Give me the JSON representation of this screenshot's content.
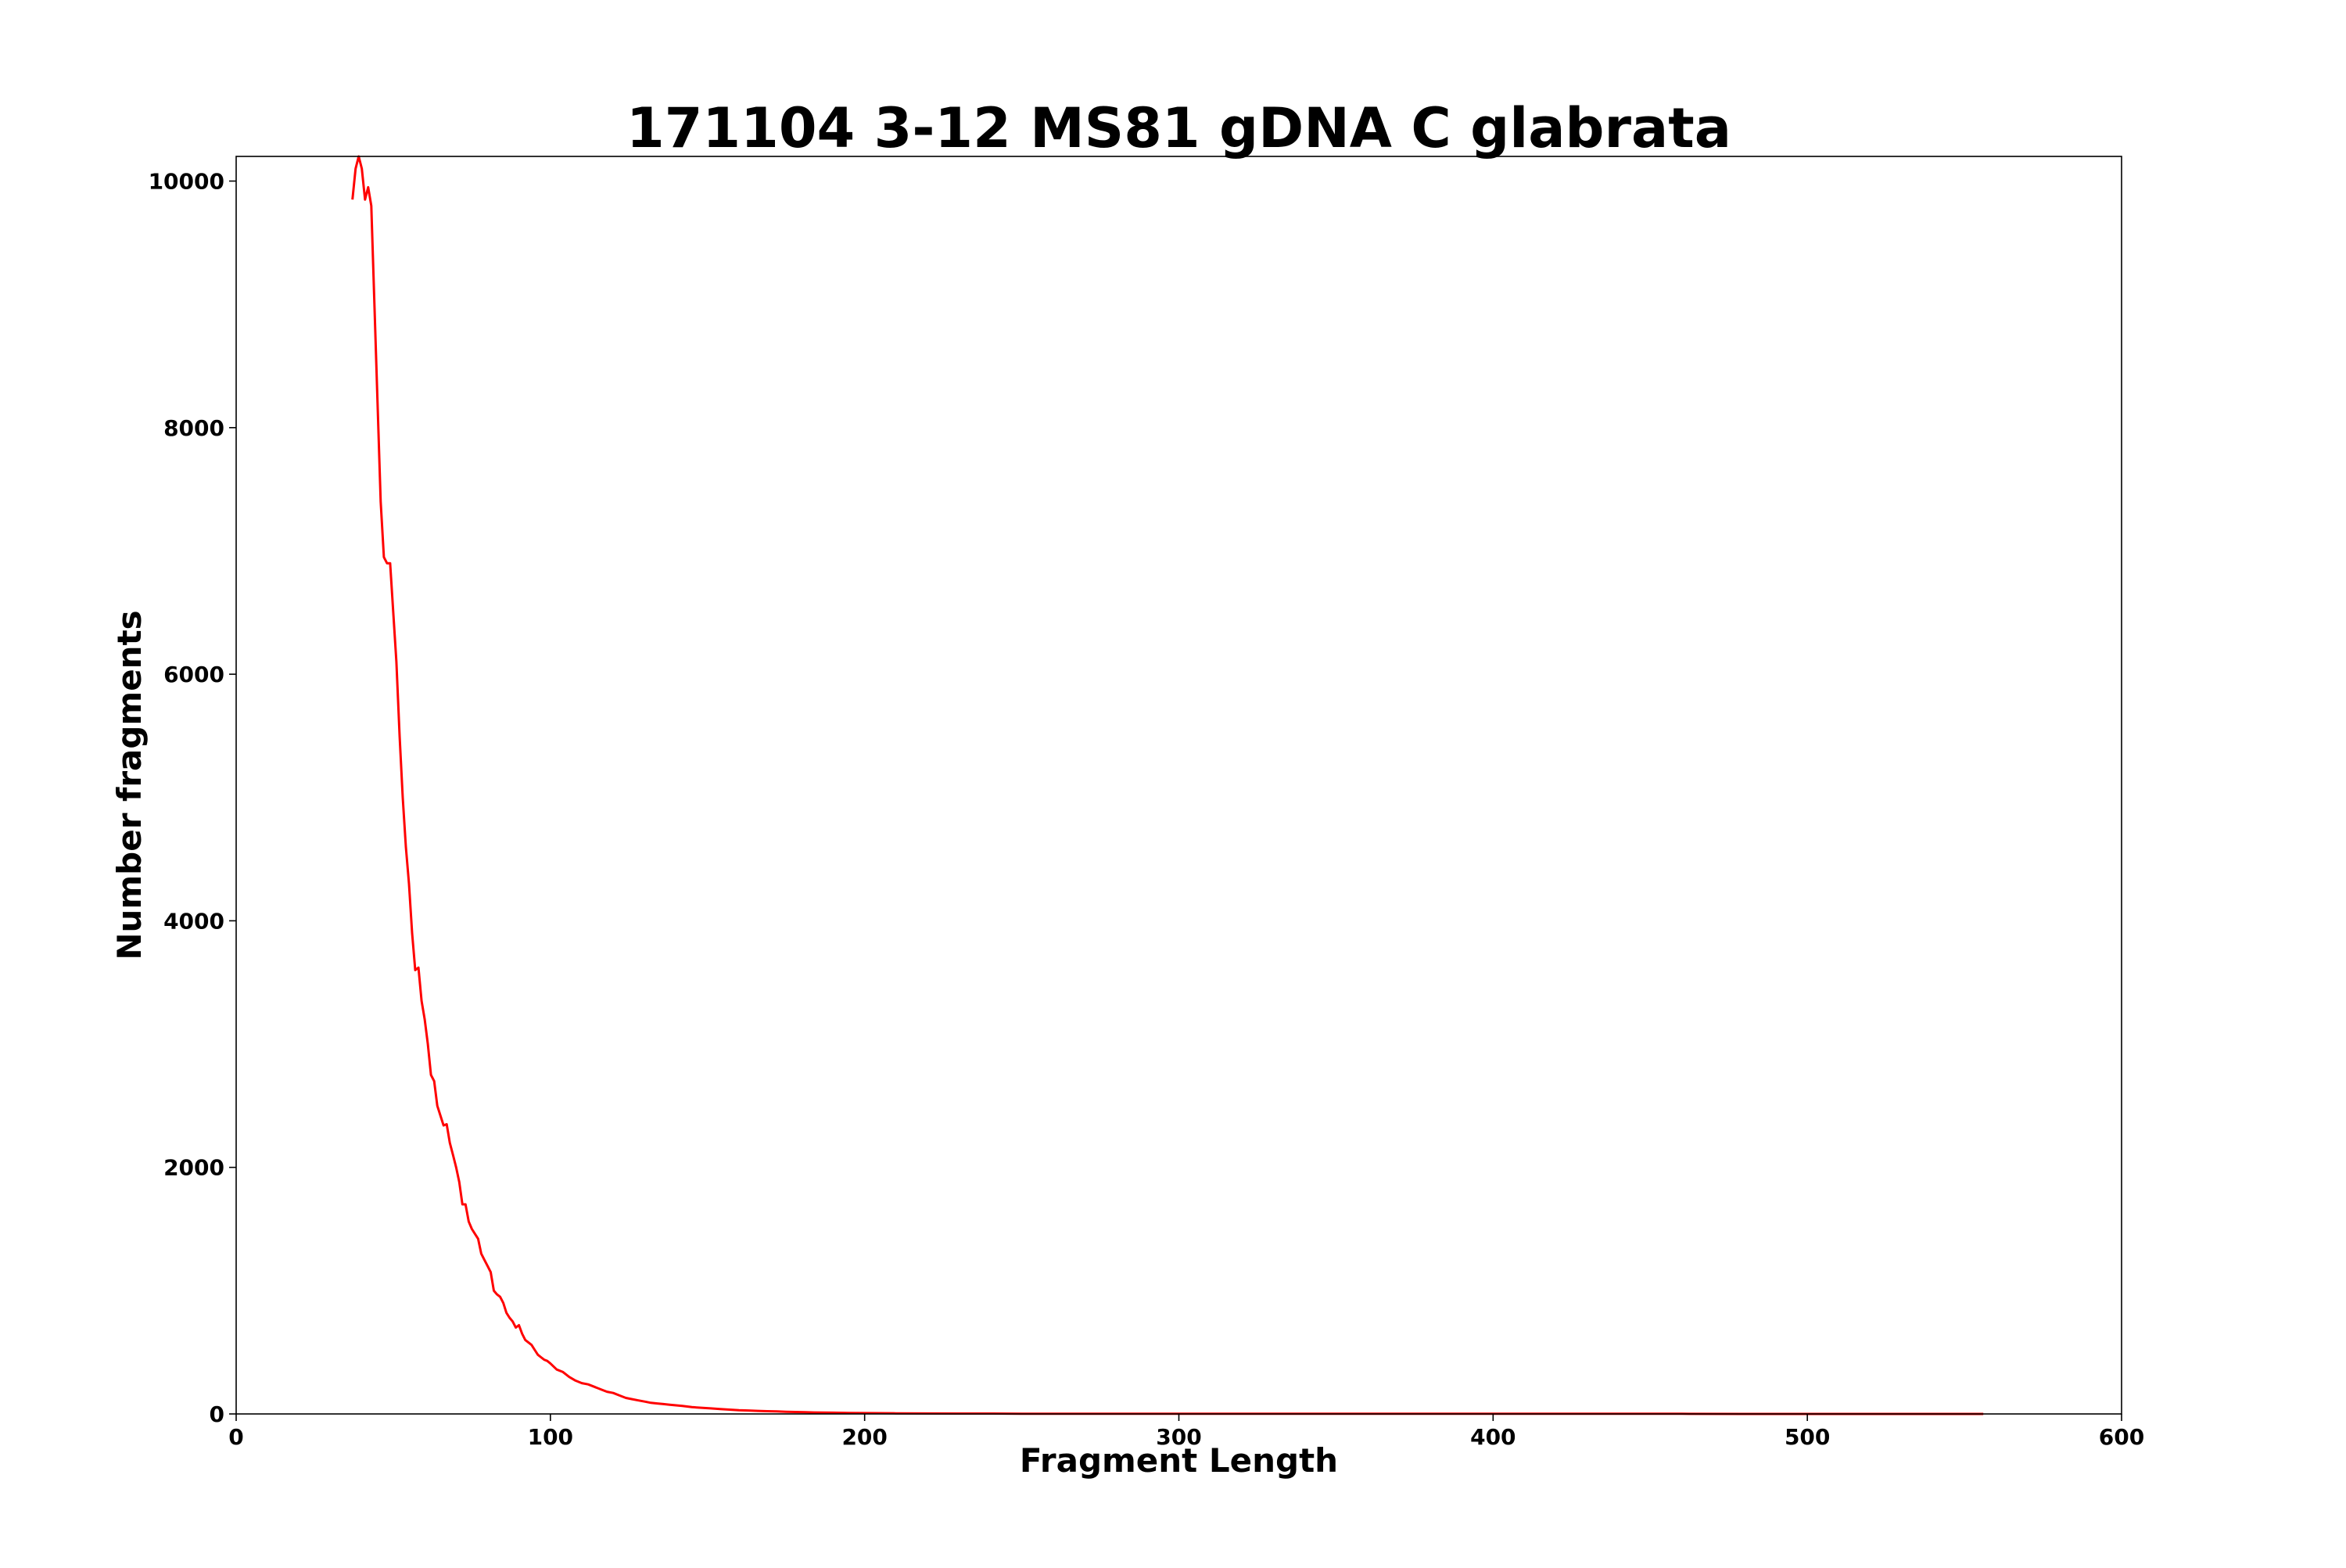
{
  "chart_data": {
    "type": "line",
    "title": "171104 3-12 MS81 gDNA C glabrata",
    "xlabel": "Fragment Length",
    "ylabel": "Number fragments",
    "xlim": [
      0,
      600
    ],
    "ylim": [
      0,
      10200
    ],
    "xticks": [
      0,
      100,
      200,
      300,
      400,
      500,
      600
    ],
    "xtick_labels": [
      "0",
      "100",
      "200",
      "300",
      "400",
      "500",
      "600"
    ],
    "yticks": [
      0,
      2000,
      4000,
      6000,
      8000,
      10000
    ],
    "ytick_labels": [
      "0",
      "2000",
      "4000",
      "6000",
      "8000",
      "10000"
    ],
    "grid": false,
    "legend": "none",
    "series": [
      {
        "color": "#ff0000",
        "x": [
          37,
          38,
          39,
          40,
          41,
          42,
          43,
          44,
          45,
          46,
          47,
          48,
          49,
          50,
          51,
          52,
          53,
          54,
          55,
          56,
          57,
          58,
          59,
          60,
          61,
          62,
          63,
          64,
          65,
          66,
          67,
          68,
          69,
          70,
          71,
          72,
          73,
          74,
          75,
          76,
          77,
          78,
          79,
          80,
          81,
          82,
          83,
          84,
          85,
          86,
          87,
          88,
          89,
          90,
          91,
          92,
          93,
          94,
          95,
          96,
          97,
          98,
          99,
          100,
          102,
          104,
          106,
          108,
          110,
          112,
          114,
          116,
          118,
          120,
          122,
          124,
          126,
          128,
          130,
          132,
          134,
          136,
          138,
          140,
          142,
          145,
          148,
          151,
          154,
          157,
          160,
          163,
          166,
          169,
          172,
          175,
          178,
          181,
          184,
          187,
          190,
          195,
          200,
          210,
          220,
          230,
          240,
          250,
          260,
          270,
          280,
          300,
          320,
          340,
          360,
          380,
          400,
          420,
          440,
          460,
          480,
          500,
          520,
          540,
          556
        ],
        "y": [
          9850,
          10100,
          10200,
          10100,
          9850,
          9950,
          9800,
          9000,
          8200,
          7400,
          6950,
          6900,
          6900,
          6500,
          6100,
          5500,
          5000,
          4600,
          4300,
          3900,
          3600,
          3620,
          3350,
          3200,
          3000,
          2750,
          2700,
          2500,
          2420,
          2340,
          2350,
          2200,
          2100,
          2000,
          1880,
          1700,
          1700,
          1560,
          1500,
          1460,
          1420,
          1300,
          1250,
          1200,
          1150,
          1000,
          970,
          950,
          900,
          820,
          780,
          750,
          700,
          720,
          650,
          600,
          580,
          560,
          520,
          480,
          460,
          440,
          430,
          410,
          360,
          340,
          300,
          270,
          250,
          240,
          220,
          200,
          180,
          170,
          150,
          130,
          120,
          110,
          100,
          90,
          85,
          80,
          75,
          70,
          65,
          55,
          50,
          45,
          40,
          35,
          30,
          28,
          25,
          22,
          20,
          18,
          16,
          14,
          12,
          11,
          10,
          8,
          7,
          5,
          4,
          3,
          3,
          2,
          2,
          2,
          1,
          1,
          1,
          1,
          1,
          1,
          1,
          1,
          1,
          1,
          0,
          0,
          0,
          0,
          0
        ]
      }
    ]
  }
}
